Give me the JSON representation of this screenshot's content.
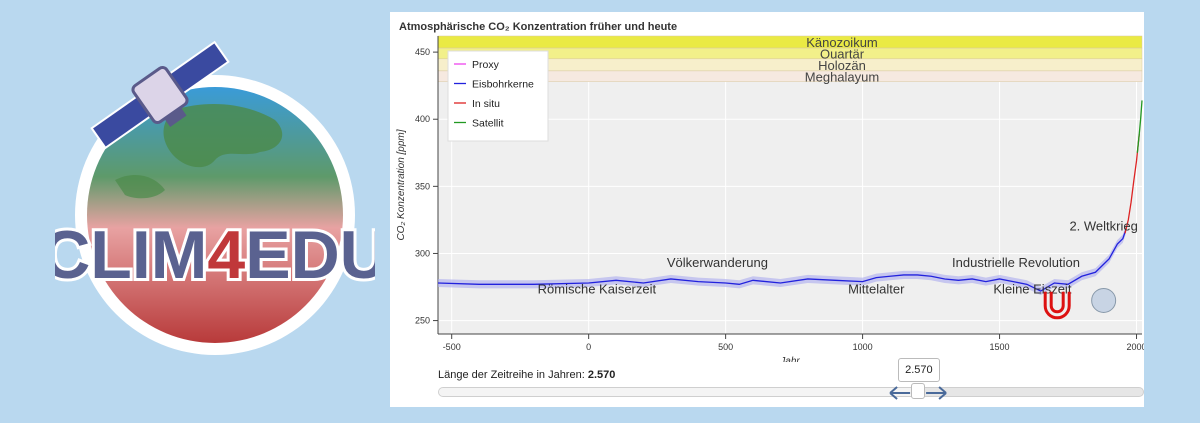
{
  "logo": {
    "text_a": "CLIM",
    "text_b": "4",
    "text_c": "EDU"
  },
  "colors": {
    "proxy": "#ee44ee",
    "ice_core": "#2222dd",
    "in_situ": "#dd2222",
    "satellite": "#229922",
    "band": "#aaaaee"
  },
  "chart_data": {
    "type": "line",
    "title": "Atmosphärische CO₂ Konzentration früher und heute",
    "xlabel": "Jahr",
    "ylabel": "CO₂ Konzentration [ppm]",
    "xlim": [
      -550,
      2020
    ],
    "ylim": [
      240,
      462
    ],
    "xticks": [
      -500,
      0,
      500,
      1000,
      1500,
      2000
    ],
    "yticks": [
      250,
      300,
      350,
      400,
      450
    ],
    "legend": [
      "Proxy",
      "Eisbohrkerne",
      "In situ",
      "Satellit"
    ],
    "legend_position": "top-left",
    "eras": [
      {
        "name": "Känozoikum",
        "y0": 453,
        "y1": 462,
        "color": "#eaea44"
      },
      {
        "name": "Quartär",
        "y0": 445,
        "y1": 453,
        "color": "#f2f08a"
      },
      {
        "name": "Holozän",
        "y0": 436,
        "y1": 445,
        "color": "#f7efcb"
      },
      {
        "name": "Meghalayum",
        "y0": 428,
        "y1": 436,
        "color": "#f6e9e0"
      }
    ],
    "series": [
      {
        "name": "Eisbohrkerne",
        "points": [
          [
            -550,
            278
          ],
          [
            -400,
            277
          ],
          [
            -200,
            277
          ],
          [
            0,
            278
          ],
          [
            100,
            280
          ],
          [
            200,
            278
          ],
          [
            300,
            281
          ],
          [
            400,
            279
          ],
          [
            500,
            278
          ],
          [
            550,
            277
          ],
          [
            600,
            280
          ],
          [
            700,
            278
          ],
          [
            800,
            281
          ],
          [
            900,
            280
          ],
          [
            1000,
            279
          ],
          [
            1050,
            282
          ],
          [
            1100,
            283
          ],
          [
            1150,
            284
          ],
          [
            1200,
            284
          ],
          [
            1250,
            283
          ],
          [
            1300,
            281
          ],
          [
            1350,
            280
          ],
          [
            1400,
            281
          ],
          [
            1450,
            279
          ],
          [
            1500,
            281
          ],
          [
            1550,
            279
          ],
          [
            1600,
            277
          ],
          [
            1650,
            272
          ],
          [
            1700,
            278
          ],
          [
            1750,
            277
          ],
          [
            1800,
            283
          ],
          [
            1850,
            286
          ],
          [
            1900,
            296
          ],
          [
            1930,
            307
          ],
          [
            1950,
            311
          ],
          [
            1960,
            317
          ]
        ]
      },
      {
        "name": "In situ",
        "points": [
          [
            1958,
            315
          ],
          [
            1970,
            325
          ],
          [
            1980,
            338
          ],
          [
            1990,
            354
          ],
          [
            2000,
            369
          ],
          [
            2010,
            389
          ]
        ]
      },
      {
        "name": "Satellit",
        "points": [
          [
            2003,
            375
          ],
          [
            2010,
            389
          ],
          [
            2015,
            400
          ],
          [
            2020,
            414
          ]
        ]
      }
    ],
    "annotations": [
      {
        "text": "Völkerwanderung",
        "x": 470,
        "y": 290
      },
      {
        "text": "Römische Kaiserzeit",
        "x": 30,
        "y": 270
      },
      {
        "text": "Mittelalter",
        "x": 1050,
        "y": 270
      },
      {
        "text": "Industrielle Revolution",
        "x": 1560,
        "y": 290
      },
      {
        "text": "Kleine Eiszeit",
        "x": 1620,
        "y": 270
      },
      {
        "text": "2. Weltkrieg",
        "x": 1880,
        "y": 317
      }
    ]
  },
  "slider": {
    "label": "Länge der Zeitreihe in Jahren:",
    "value_text": "2.570",
    "tooltip": "2.570",
    "fraction": 0.68
  }
}
